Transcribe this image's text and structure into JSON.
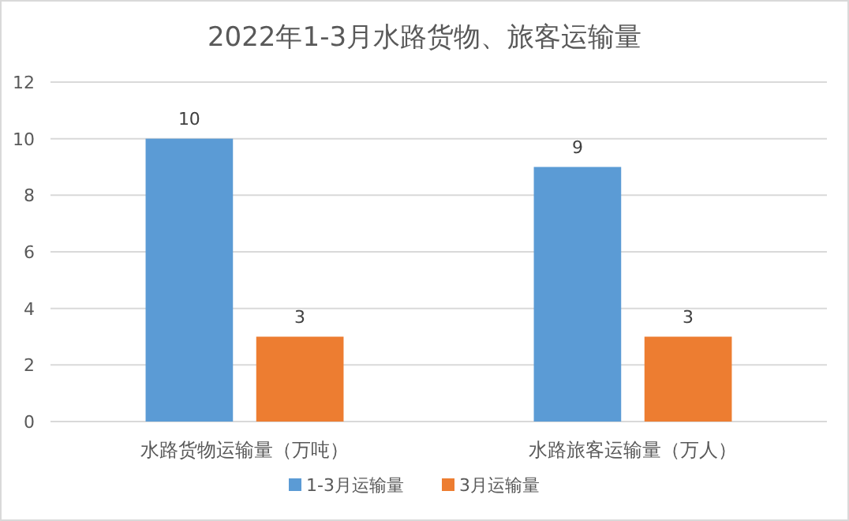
{
  "chart_data": {
    "type": "bar",
    "title": "2022年1-3月水路货物、旅客运输量",
    "categories": [
      "水路货物运输量（万吨）",
      "水路旅客运输量（万人）"
    ],
    "series": [
      {
        "name": "1-3月运输量",
        "color": "#5b9bd5",
        "values": [
          10,
          9
        ]
      },
      {
        "name": "3月运输量",
        "color": "#ed7d31",
        "values": [
          3,
          3
        ]
      }
    ],
    "ylim": [
      0,
      12
    ],
    "yticks": [
      0,
      2,
      4,
      6,
      8,
      10,
      12
    ],
    "grid": "y",
    "legend": "bottom",
    "data_labels": true
  }
}
